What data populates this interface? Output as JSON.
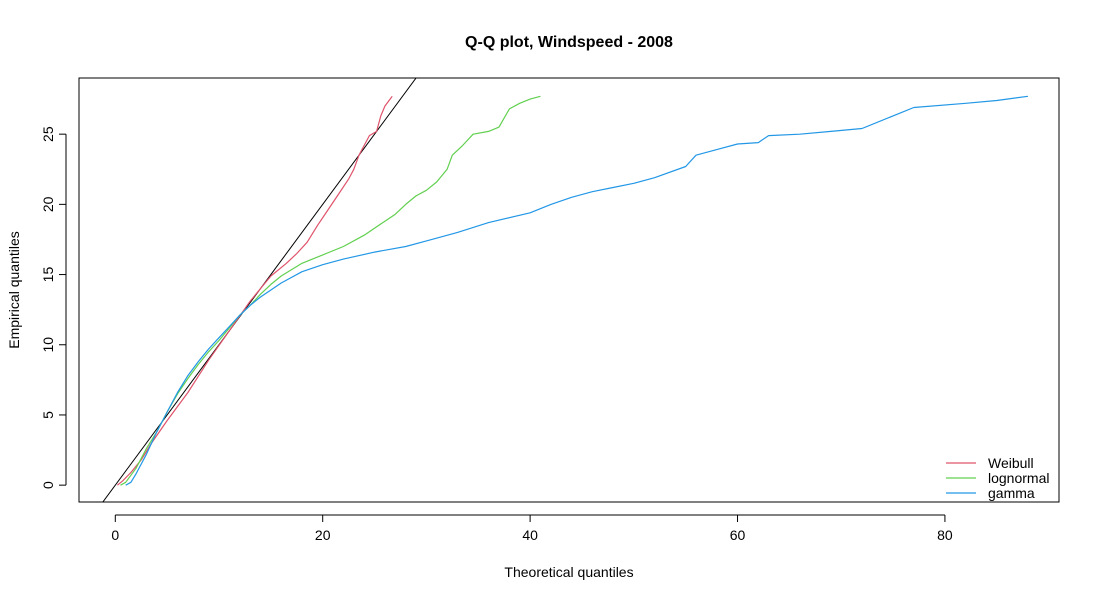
{
  "chart_data": {
    "type": "line",
    "title": "Q-Q plot, Windspeed - 2008",
    "xlabel": "Theoretical quantiles",
    "ylabel": "Empirical quantiles",
    "xlim": [
      -3.5,
      91
    ],
    "ylim": [
      -1.2,
      29
    ],
    "xticks": [
      0,
      20,
      40,
      60,
      80
    ],
    "yticks": [
      0,
      5,
      10,
      15,
      20,
      25
    ],
    "grid": false,
    "legend_position": "bottom-right",
    "reference_line": {
      "slope": 1,
      "intercept": 0,
      "color": "#000000"
    },
    "series": [
      {
        "name": "Weibull",
        "color": "#DF536B",
        "points": [
          [
            0.2,
            0
          ],
          [
            0.7,
            0.3
          ],
          [
            1.5,
            0.9
          ],
          [
            2.5,
            1.8
          ],
          [
            3.5,
            3
          ],
          [
            5,
            4.6
          ],
          [
            7,
            6.6
          ],
          [
            9,
            8.9
          ],
          [
            11,
            11
          ],
          [
            13,
            13.1
          ],
          [
            15,
            14.9
          ],
          [
            16.5,
            15.8
          ],
          [
            17.5,
            16.5
          ],
          [
            18.5,
            17.3
          ],
          [
            19.5,
            18.5
          ],
          [
            20.5,
            19.6
          ],
          [
            21.5,
            20.7
          ],
          [
            22.5,
            21.8
          ],
          [
            23,
            22.5
          ],
          [
            23.5,
            23.5
          ],
          [
            24,
            24.2
          ],
          [
            24.5,
            24.9
          ],
          [
            25.2,
            25.2
          ],
          [
            25.6,
            26.3
          ],
          [
            26,
            27
          ],
          [
            26.5,
            27.5
          ],
          [
            26.7,
            27.7
          ]
        ]
      },
      {
        "name": "lognormal",
        "color": "#61D04F",
        "points": [
          [
            0.5,
            0
          ],
          [
            1,
            0.2
          ],
          [
            2,
            1.2
          ],
          [
            3,
            2.6
          ],
          [
            4,
            3.8
          ],
          [
            5,
            5.2
          ],
          [
            6,
            6.5
          ],
          [
            7,
            7.6
          ],
          [
            8,
            8.6
          ],
          [
            9,
            9.5
          ],
          [
            10,
            10.3
          ],
          [
            11,
            11.2
          ],
          [
            12,
            12.1
          ],
          [
            13,
            12.8
          ],
          [
            14,
            13.6
          ],
          [
            15,
            14.3
          ],
          [
            16,
            14.9
          ],
          [
            18,
            15.8
          ],
          [
            20,
            16.4
          ],
          [
            22,
            17
          ],
          [
            24,
            17.8
          ],
          [
            26,
            18.8
          ],
          [
            27,
            19.3
          ],
          [
            28,
            20
          ],
          [
            29,
            20.6
          ],
          [
            30,
            21
          ],
          [
            31,
            21.6
          ],
          [
            32,
            22.5
          ],
          [
            32.5,
            23.5
          ],
          [
            33.5,
            24.2
          ],
          [
            34.5,
            25
          ],
          [
            36,
            25.2
          ],
          [
            37,
            25.5
          ],
          [
            38,
            26.8
          ],
          [
            39,
            27.2
          ],
          [
            40,
            27.5
          ],
          [
            41,
            27.7
          ]
        ]
      },
      {
        "name": "gamma",
        "color": "#2297E6",
        "points": [
          [
            1,
            0
          ],
          [
            1.5,
            0.2
          ],
          [
            2,
            0.8
          ],
          [
            3,
            2.2
          ],
          [
            4,
            3.8
          ],
          [
            5,
            5.2
          ],
          [
            6,
            6.6
          ],
          [
            7,
            7.8
          ],
          [
            8,
            8.8
          ],
          [
            9,
            9.7
          ],
          [
            10,
            10.5
          ],
          [
            11,
            11.3
          ],
          [
            12,
            12.1
          ],
          [
            13,
            12.8
          ],
          [
            14,
            13.4
          ],
          [
            15,
            13.9
          ],
          [
            16,
            14.4
          ],
          [
            18,
            15.2
          ],
          [
            20,
            15.7
          ],
          [
            22,
            16.1
          ],
          [
            25,
            16.6
          ],
          [
            28,
            17
          ],
          [
            30,
            17.4
          ],
          [
            33,
            18
          ],
          [
            36,
            18.7
          ],
          [
            40,
            19.4
          ],
          [
            42,
            20
          ],
          [
            44,
            20.5
          ],
          [
            46,
            20.9
          ],
          [
            48,
            21.2
          ],
          [
            50,
            21.5
          ],
          [
            52,
            21.9
          ],
          [
            55,
            22.7
          ],
          [
            56,
            23.5
          ],
          [
            58,
            23.9
          ],
          [
            60,
            24.3
          ],
          [
            62,
            24.4
          ],
          [
            63,
            24.9
          ],
          [
            66,
            25
          ],
          [
            69,
            25.2
          ],
          [
            72,
            25.4
          ],
          [
            77,
            26.9
          ],
          [
            82,
            27.2
          ],
          [
            85,
            27.4
          ],
          [
            88,
            27.7
          ]
        ]
      }
    ]
  }
}
